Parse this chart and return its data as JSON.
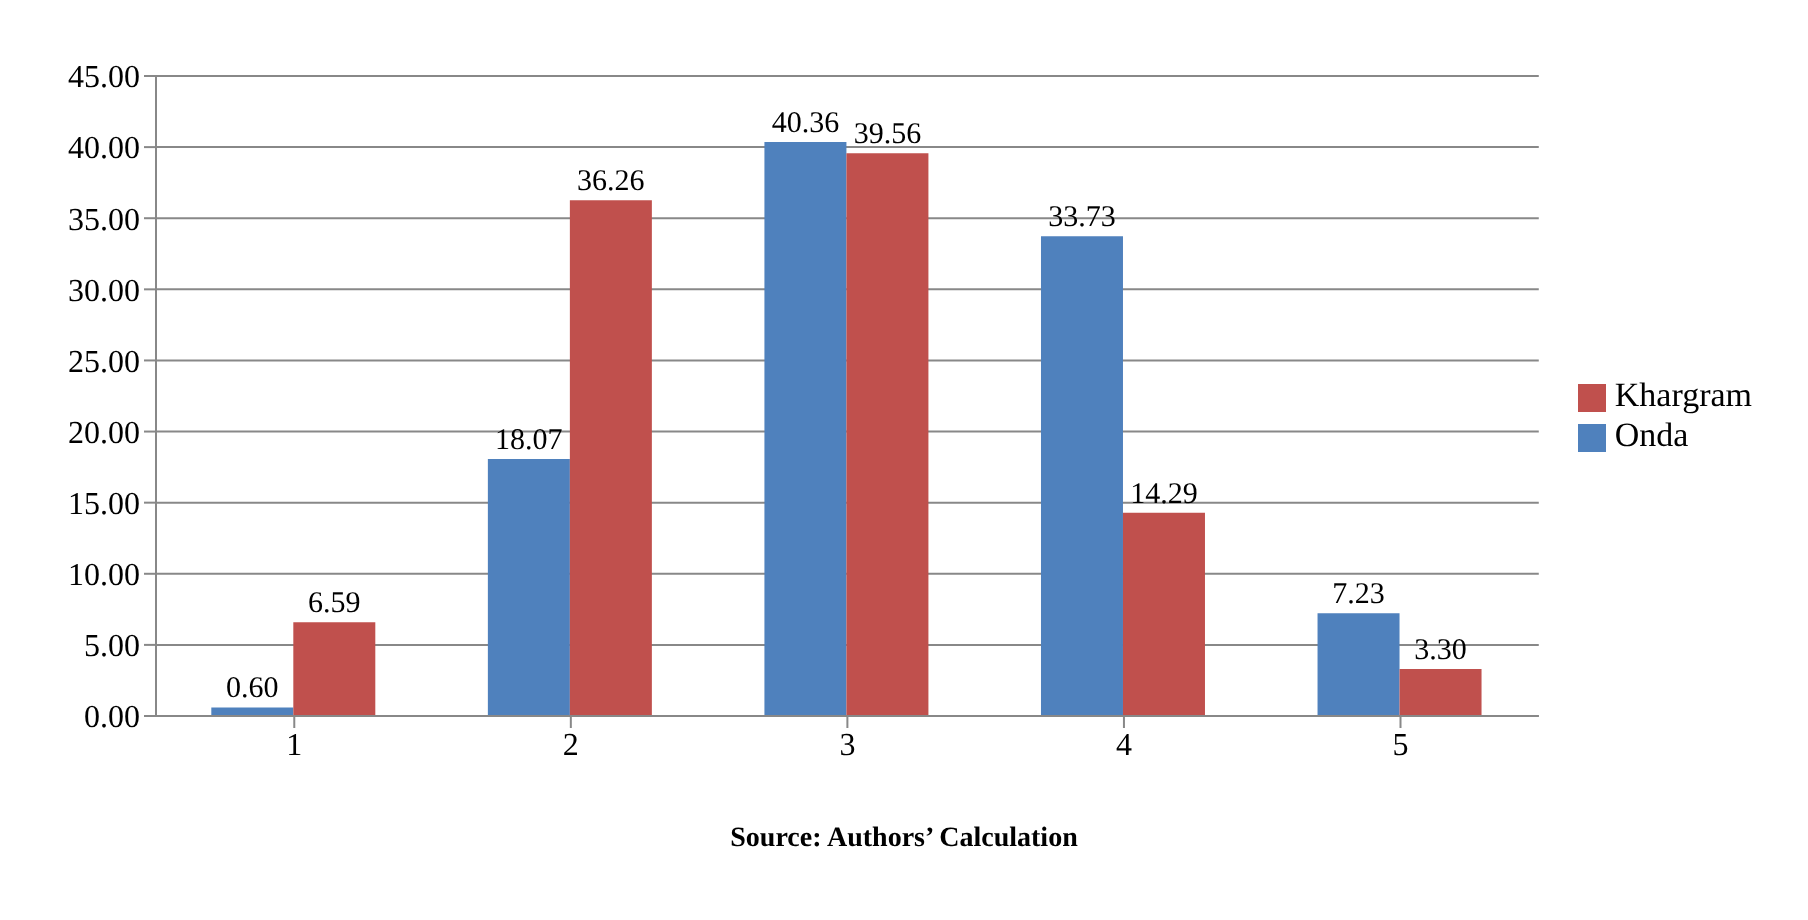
{
  "chart_data": {
    "type": "bar",
    "categories": [
      "1",
      "2",
      "3",
      "4",
      "5"
    ],
    "series": [
      {
        "name": "Onda",
        "color": "#4f81bd",
        "values": [
          0.6,
          18.07,
          40.36,
          33.73,
          7.23
        ],
        "value_labels": [
          "0.60",
          "18.07",
          "40.36",
          "33.73",
          "7.23"
        ]
      },
      {
        "name": "Khargram",
        "color": "#c0504d",
        "values": [
          6.59,
          36.26,
          39.56,
          14.29,
          3.3
        ],
        "value_labels": [
          "6.59",
          "36.26",
          "39.56",
          "14.29",
          "3.30"
        ]
      }
    ],
    "ylim": [
      0,
      45
    ],
    "yticks": [
      {
        "value": 0,
        "label": "0.00"
      },
      {
        "value": 5,
        "label": "5.00"
      },
      {
        "value": 10,
        "label": "10.00"
      },
      {
        "value": 15,
        "label": "15.00"
      },
      {
        "value": 20,
        "label": "20.00"
      },
      {
        "value": 25,
        "label": "25.00"
      },
      {
        "value": 30,
        "label": "30.00"
      },
      {
        "value": 35,
        "label": "35.00"
      },
      {
        "value": 40,
        "label": "40.00"
      },
      {
        "value": 45,
        "label": "45.00"
      }
    ],
    "grid": "y",
    "legend": "right",
    "annotations": [
      "Source: Authors’ Calculation"
    ]
  }
}
